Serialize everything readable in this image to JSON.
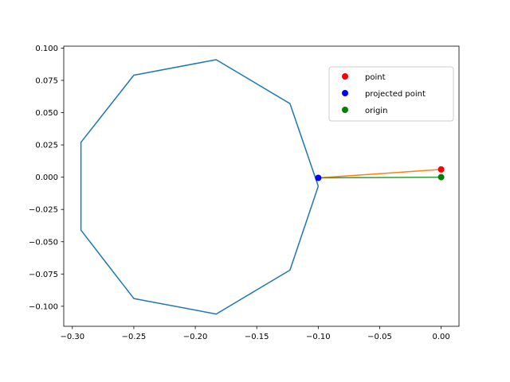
{
  "chart_data": {
    "type": "line",
    "title": "",
    "xlabel": "",
    "ylabel": "",
    "xlim": [
      -0.307,
      0.0145
    ],
    "ylim": [
      -0.1155,
      0.1015
    ],
    "grid": false,
    "legend_position": "top-right",
    "x_ticks": [
      -0.3,
      -0.25,
      -0.2,
      -0.15,
      -0.1,
      -0.05,
      0.0
    ],
    "x_tick_labels": [
      "−0.30",
      "−0.25",
      "−0.20",
      "−0.15",
      "−0.10",
      "−0.05",
      "0.00"
    ],
    "y_ticks": [
      0.1,
      0.075,
      0.05,
      0.025,
      0.0,
      -0.025,
      -0.05,
      -0.075,
      -0.1
    ],
    "y_tick_labels": [
      "0.100",
      "0.075",
      "0.050",
      "0.025",
      "0.000",
      "−0.025",
      "−0.050",
      "−0.075",
      "−0.100"
    ],
    "series": [
      {
        "kind": "line",
        "color": "#1f77b4",
        "points": [
          [
            -0.1,
            -0.007
          ],
          [
            -0.123,
            0.057
          ],
          [
            -0.183,
            0.091
          ],
          [
            -0.25,
            0.079
          ],
          [
            -0.293,
            0.027
          ],
          [
            -0.293,
            -0.041
          ],
          [
            -0.25,
            -0.094
          ],
          [
            -0.183,
            -0.106
          ],
          [
            -0.123,
            -0.072
          ],
          [
            -0.1,
            -0.007
          ]
        ]
      },
      {
        "kind": "line",
        "color": "#ff7f0e",
        "points": [
          [
            -0.1,
            -0.0005
          ],
          [
            0.0,
            0.006
          ]
        ]
      },
      {
        "kind": "line",
        "color": "#2ca02c",
        "points": [
          [
            -0.1,
            -0.0005
          ],
          [
            0.0,
            0.0
          ]
        ]
      },
      {
        "kind": "scatter",
        "name": "point",
        "color": "#ff0000",
        "points": [
          [
            0.0,
            0.006
          ]
        ]
      },
      {
        "kind": "scatter",
        "name": "projected point",
        "color": "#0000ff",
        "points": [
          [
            -0.1,
            -0.0005
          ]
        ]
      },
      {
        "kind": "scatter",
        "name": "origin",
        "color": "#008000",
        "points": [
          [
            0.0,
            0.0
          ]
        ]
      }
    ]
  }
}
